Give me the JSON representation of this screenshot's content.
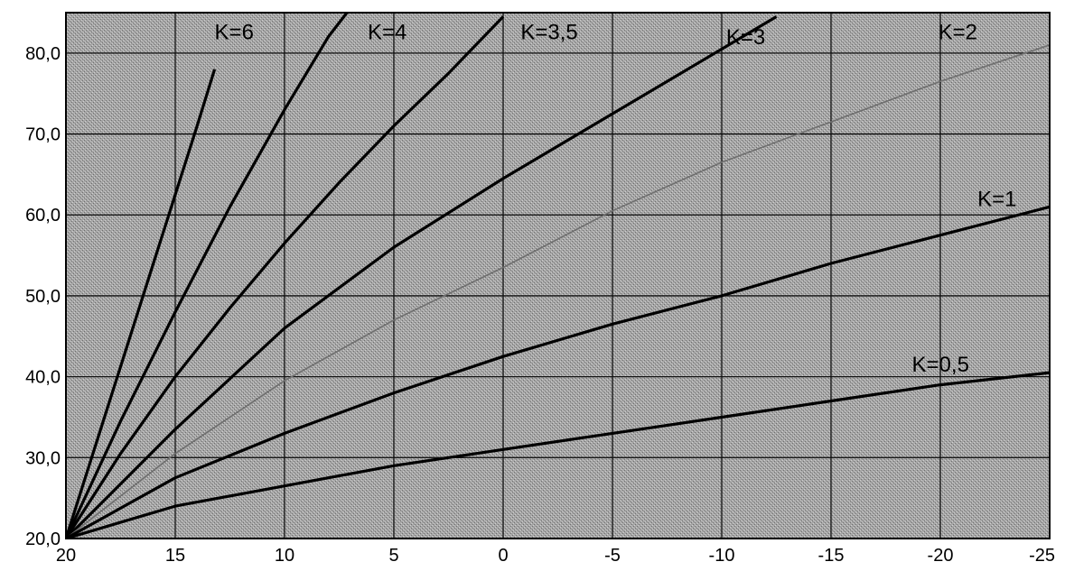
{
  "chart_data": {
    "type": "line",
    "title": "",
    "xlabel": "",
    "ylabel": "",
    "xlim": [
      20,
      -25
    ],
    "ylim": [
      20,
      85
    ],
    "x_ticks": [
      "20",
      "15",
      "10",
      "5",
      "0",
      "-5",
      "-10",
      "-15",
      "-20",
      "-25"
    ],
    "y_ticks": [
      "20,0",
      "30,0",
      "40,0",
      "50,0",
      "60,0",
      "70,0",
      "80,0"
    ],
    "grid": true,
    "colors": {
      "plot_background": "#a3a3a3",
      "main_curves": "#000000",
      "k2_curve": "#6e6e6e"
    },
    "series": [
      {
        "name": "K=6",
        "x": [
          20,
          18,
          16,
          14,
          13.2
        ],
        "y": [
          20,
          37,
          54,
          71,
          78
        ]
      },
      {
        "name": "K=4",
        "x": [
          20,
          17.5,
          15,
          12.5,
          10,
          8,
          6
        ],
        "y": [
          20,
          34.5,
          48,
          61,
          73,
          82,
          89
        ]
      },
      {
        "name": "K=3,5",
        "x": [
          20,
          17.5,
          15,
          12.5,
          10,
          7.5,
          5,
          2.5,
          0
        ],
        "y": [
          20,
          30.5,
          40,
          48.5,
          56.5,
          64,
          71,
          77.5,
          84.5
        ]
      },
      {
        "name": "K=3",
        "x": [
          20,
          15,
          10,
          5,
          0,
          -5,
          -10,
          -12.5
        ],
        "y": [
          20,
          33.5,
          46,
          56,
          64.5,
          72.5,
          80.5,
          84.5
        ]
      },
      {
        "name": "K=2",
        "x": [
          20,
          15,
          10,
          5,
          0,
          -5,
          -10,
          -15,
          -20,
          -25
        ],
        "y": [
          20,
          30.5,
          39.5,
          47,
          53.5,
          60.5,
          66.5,
          71.5,
          76.5,
          81
        ]
      },
      {
        "name": "K=1",
        "x": [
          20,
          15,
          10,
          5,
          0,
          -5,
          -10,
          -15,
          -20,
          -25
        ],
        "y": [
          20,
          27.5,
          33,
          38,
          42.5,
          46.5,
          50,
          54,
          57.5,
          61
        ]
      },
      {
        "name": "K=0,5",
        "x": [
          20,
          15,
          10,
          5,
          0,
          -5,
          -10,
          -15,
          -20,
          -25
        ],
        "y": [
          20,
          24,
          26.5,
          29,
          31,
          33,
          35,
          37,
          39,
          40.5
        ]
      }
    ],
    "curve_labels": [
      {
        "text": "K=6",
        "x": 13.2,
        "y": 82.6
      },
      {
        "text": "K=4",
        "x": 6.2,
        "y": 82.6
      },
      {
        "text": "K=3,5",
        "x": -0.8,
        "y": 82.6
      },
      {
        "text": "K=3",
        "x": -10.2,
        "y": 82.0
      },
      {
        "text": "K=2",
        "x": -19.9,
        "y": 82.6
      },
      {
        "text": "K=1",
        "x": -21.7,
        "y": 62.0
      },
      {
        "text": "K=0,5",
        "x": -18.7,
        "y": 41.5
      }
    ]
  }
}
